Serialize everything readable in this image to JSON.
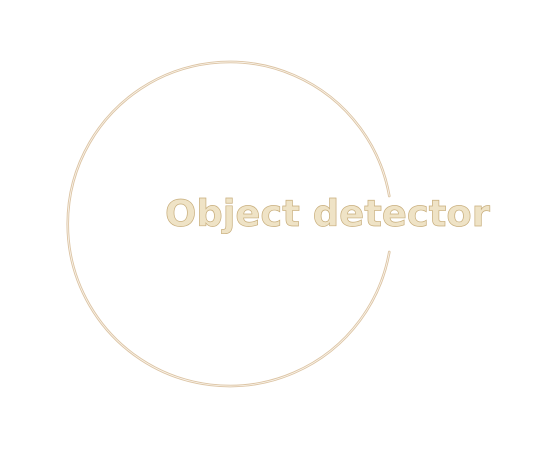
{
  "logo": {
    "title": "Object detector",
    "text_fill_color": "#efe3c6",
    "text_outline_color": "#c8ae7c",
    "ring_color": "#dcc4a4"
  }
}
